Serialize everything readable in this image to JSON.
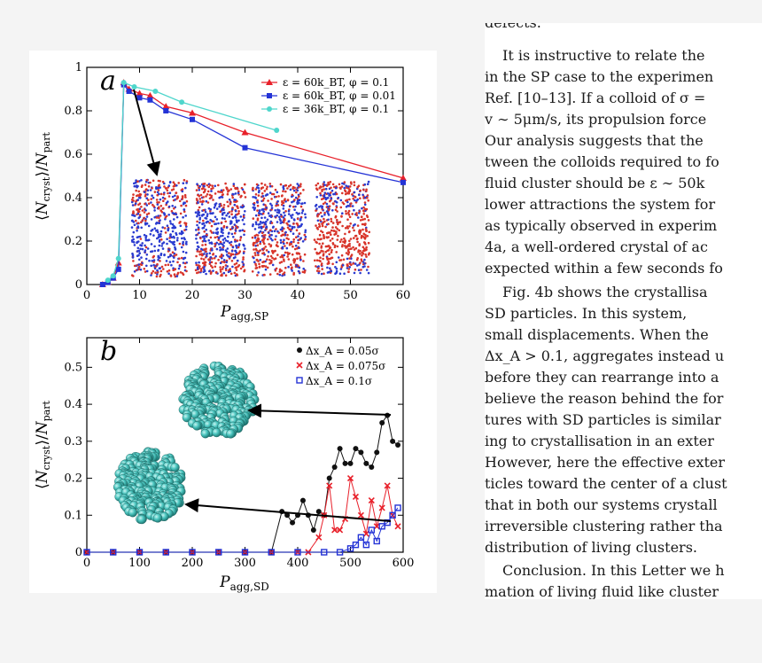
{
  "figure": {
    "panel_a": {
      "letter": "a",
      "ylabel": "⟨N_cryst⟩/N_part",
      "xlabel": "P_agg,SP",
      "xticks": [
        "0",
        "10",
        "20",
        "30",
        "40",
        "50",
        "60"
      ],
      "yticks": [
        "0",
        "0.2",
        "0.4",
        "0.6",
        "0.8",
        "1"
      ],
      "inset_description_icons": [
        "crystal-snapshot-1",
        "crystal-snapshot-2",
        "crystal-snapshot-3",
        "crystal-snapshot-4"
      ]
    },
    "panel_b": {
      "letter": "b",
      "ylabel": "⟨N_cryst⟩/N_part",
      "xlabel": "P_agg,SD",
      "xticks": [
        "0",
        "100",
        "200",
        "300",
        "400",
        "500",
        "600"
      ],
      "yticks": [
        "0",
        "0.1",
        "0.2",
        "0.3",
        "0.4",
        "0.5"
      ]
    }
  },
  "chart_data": [
    {
      "type": "line",
      "panel": "a",
      "xlabel": "P_agg,SP",
      "ylabel": "⟨N_cryst⟩/N_part",
      "xlim": [
        0,
        60
      ],
      "ylim": [
        0,
        1
      ],
      "legend_position": "top-right",
      "series": [
        {
          "name": "ε = 60k_BT, φ = 0.1",
          "color": "#e8202a",
          "marker": "triangle",
          "x": [
            3,
            4,
            5,
            6,
            7,
            8,
            10,
            12,
            15,
            20,
            30,
            60
          ],
          "y": [
            0.0,
            0.01,
            0.03,
            0.1,
            0.93,
            0.9,
            0.88,
            0.87,
            0.82,
            0.79,
            0.7,
            0.49
          ]
        },
        {
          "name": "ε = 60k_BT, φ = 0.01",
          "color": "#2433d6",
          "marker": "square",
          "x": [
            3,
            4,
            5,
            6,
            7,
            8,
            10,
            12,
            15,
            20,
            30,
            60
          ],
          "y": [
            0.0,
            0.01,
            0.03,
            0.07,
            0.92,
            0.89,
            0.86,
            0.85,
            0.8,
            0.76,
            0.63,
            0.47
          ]
        },
        {
          "name": "ε = 36k_BT, φ = 0.1",
          "color": "#4fd6cc",
          "marker": "circle",
          "x": [
            4,
            5,
            6,
            7,
            9,
            13,
            18,
            36
          ],
          "y": [
            0.02,
            0.04,
            0.12,
            0.93,
            0.91,
            0.89,
            0.84,
            0.71
          ]
        }
      ]
    },
    {
      "type": "line",
      "panel": "b",
      "xlabel": "P_agg,SD",
      "ylabel": "⟨N_cryst⟩/N_part",
      "xlim": [
        0,
        600
      ],
      "ylim": [
        0,
        0.58
      ],
      "legend_position": "top-right",
      "series": [
        {
          "name": "Δx_A = 0.05σ",
          "color": "#111111",
          "marker": "circle",
          "x": [
            0,
            50,
            100,
            150,
            200,
            250,
            300,
            350,
            370,
            380,
            390,
            400,
            410,
            420,
            430,
            440,
            450,
            460,
            470,
            480,
            490,
            500,
            510,
            520,
            530,
            540,
            550,
            560,
            570,
            580,
            590
          ],
          "y": [
            0,
            0,
            0,
            0,
            0,
            0,
            0,
            0,
            0.11,
            0.1,
            0.08,
            0.1,
            0.14,
            0.1,
            0.06,
            0.11,
            0.1,
            0.2,
            0.23,
            0.28,
            0.24,
            0.24,
            0.28,
            0.27,
            0.24,
            0.23,
            0.27,
            0.35,
            0.37,
            0.3,
            0.29
          ]
        },
        {
          "name": "Δx_A = 0.075σ",
          "color": "#e8202a",
          "marker": "x",
          "x": [
            0,
            50,
            100,
            150,
            200,
            250,
            300,
            350,
            400,
            420,
            440,
            450,
            460,
            470,
            480,
            490,
            500,
            510,
            520,
            530,
            540,
            550,
            560,
            570,
            580,
            590
          ],
          "y": [
            0,
            0,
            0,
            0,
            0,
            0,
            0,
            0,
            0,
            0,
            0.04,
            0.1,
            0.18,
            0.06,
            0.06,
            0.09,
            0.2,
            0.15,
            0.1,
            0.05,
            0.14,
            0.07,
            0.12,
            0.18,
            0.1,
            0.07
          ]
        },
        {
          "name": "Δx_A = 0.1σ",
          "color": "#2433d6",
          "marker": "square",
          "x": [
            0,
            50,
            100,
            150,
            200,
            250,
            300,
            350,
            400,
            450,
            480,
            500,
            510,
            520,
            530,
            540,
            550,
            560,
            570,
            580,
            590
          ],
          "y": [
            0,
            0,
            0,
            0,
            0,
            0,
            0,
            0,
            0,
            0,
            0.0,
            0.01,
            0.02,
            0.04,
            0.02,
            0.06,
            0.03,
            0.07,
            0.08,
            0.1,
            0.12
          ]
        }
      ]
    }
  ],
  "text_column": {
    "lines": [
      "defects.",
      "It is instructive to relate the",
      "in the SP case to the experimen",
      "Ref. [10–13]. If a colloid of σ =",
      "v ∼ 5μm/s, its propulsion force",
      "Our analysis suggests that the",
      "tween the colloids required to fo",
      "fluid cluster should be ε ∼ 50k",
      "lower attractions the system for",
      "as typically observed in experim",
      "4a, a well-ordered crystal of ac",
      "expected within a few seconds fo",
      "Fig. 4b shows the crystallisa",
      "SD particles.  In this system,",
      "small displacements.  When the",
      "Δx_A > 0.1, aggregates instead u",
      "before they can rearrange into a",
      "believe the reason behind the for",
      "tures with SD particles is similar",
      "ing to crystallisation in an exter",
      "However, here the effective exter",
      "ticles toward the center of a clust",
      "that in both our systems crystall",
      "irreversible clustering rather tha",
      "distribution of living clusters.",
      "Conclusion. In this Letter we h",
      "mation of living fluid like cluster"
    ]
  }
}
